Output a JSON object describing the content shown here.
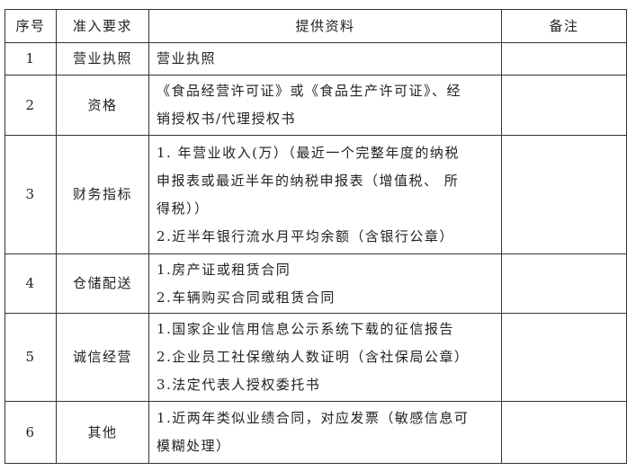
{
  "headers": [
    "序号",
    "准入要求",
    "提供资料",
    "备注"
  ],
  "rows": [
    {
      "no": "1",
      "requirement": "营业执照",
      "materials": [
        "营业执照"
      ],
      "remark": ""
    },
    {
      "no": "2",
      "requirement": "资格",
      "materials": [
        "《食品经营许可证》或《食品生产许可证》、经",
        "销授权书/代理授权书"
      ],
      "remark": ""
    },
    {
      "no": "3",
      "requirement": "财务指标",
      "materials": [
        "1. 年营业收入(万）（最近一个完整年度的纳税",
        "申报表或最近半年的纳税申报表（增值税、 所",
        "得税））",
        "2.近半年银行流水月平均余额（含银行公章）"
      ],
      "remark": ""
    },
    {
      "no": "4",
      "requirement": "仓储配送",
      "materials": [
        "1.房产证或租赁合同",
        "2.车辆购买合同或租赁合同"
      ],
      "remark": ""
    },
    {
      "no": "5",
      "requirement": "诚信经营",
      "materials": [
        "1.国家企业信用信息公示系统下载的征信报告",
        "2.企业员工社保缴纳人数证明（含社保局公章）",
        "3.法定代表人授权委托书"
      ],
      "remark": ""
    },
    {
      "no": "6",
      "requirement": "其他",
      "materials": [
        "1.近两年类似业绩合同，对应发票（敏感信息可",
        "模糊处理）"
      ],
      "remark": ""
    }
  ]
}
